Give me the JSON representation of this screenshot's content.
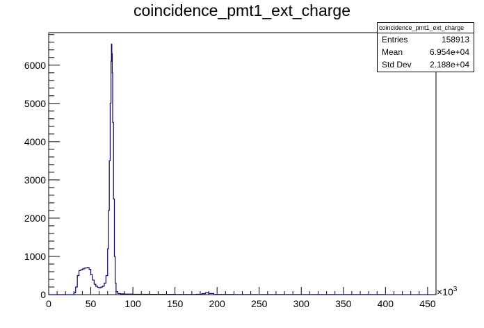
{
  "chart_data": {
    "type": "histogram",
    "title": "coincidence_pmt1_ext_charge",
    "xlabel": "",
    "ylabel": "",
    "x_exponent_label": "×10",
    "x_exponent_power": "3",
    "xlim": [
      0,
      460
    ],
    "ylim": [
      0,
      6850
    ],
    "xticks": [
      0,
      50,
      100,
      150,
      200,
      250,
      300,
      350,
      400,
      450
    ],
    "xtick_labels": [
      "0",
      "50",
      "100",
      "150",
      "200",
      "250",
      "300",
      "350",
      "400",
      "450"
    ],
    "yticks": [
      0,
      1000,
      2000,
      3000,
      4000,
      5000,
      6000
    ],
    "ytick_labels": [
      "0",
      "1000",
      "2000",
      "3000",
      "4000",
      "5000",
      "6000"
    ],
    "line_color": "#000080",
    "grid": false,
    "stats": {
      "name": "coincidence_pmt1_ext_charge",
      "rows": [
        {
          "label": "Entries",
          "value": "158913"
        },
        {
          "label": "Mean",
          "value": "6.954e+04"
        },
        {
          "label": "Std Dev",
          "value": "2.188e+04"
        }
      ]
    },
    "series": [
      {
        "x": [
          0,
          25,
          30,
          32,
          34,
          36,
          38,
          40,
          42,
          44,
          46,
          48,
          50,
          52,
          54,
          56,
          58,
          60,
          62,
          64,
          66,
          68,
          70,
          71,
          72,
          73,
          74,
          74.5,
          75,
          75.5,
          76,
          77,
          78,
          79,
          80,
          82,
          85,
          90,
          100,
          120,
          150,
          175,
          182,
          186,
          190,
          196,
          220,
          300,
          400,
          460
        ],
        "y": [
          0,
          0,
          50,
          200,
          500,
          630,
          650,
          670,
          690,
          700,
          710,
          660,
          520,
          380,
          270,
          220,
          190,
          180,
          200,
          220,
          300,
          500,
          1200,
          2200,
          3500,
          5000,
          6100,
          6550,
          6300,
          5800,
          4500,
          2500,
          1000,
          300,
          80,
          30,
          20,
          15,
          10,
          8,
          5,
          10,
          25,
          50,
          30,
          5,
          3,
          2,
          1,
          0
        ]
      }
    ]
  }
}
